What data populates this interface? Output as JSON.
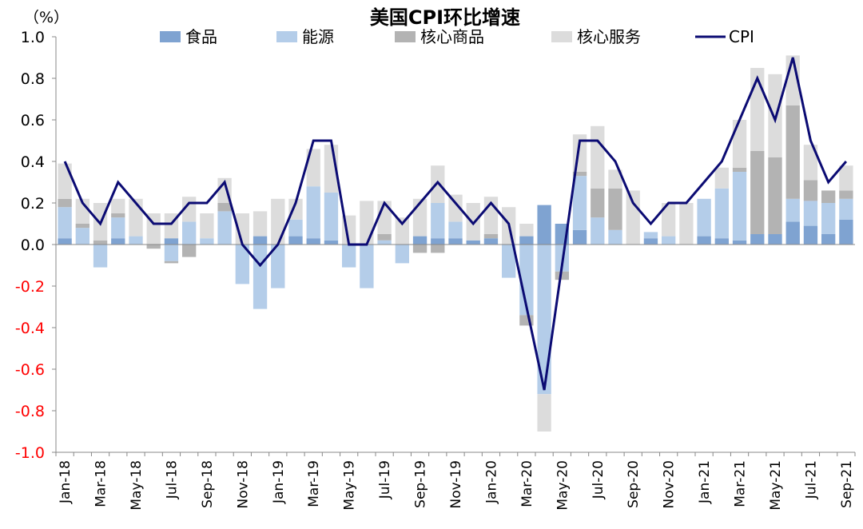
{
  "chart_data": {
    "type": "bar",
    "stacked": true,
    "title": "美国CPI环比增速",
    "unit_label": "（%）",
    "ylim": [
      -1.0,
      1.0
    ],
    "yticks": [
      "1.0",
      "0.8",
      "0.6",
      "0.4",
      "0.2",
      "0.0",
      "-0.2",
      "-0.4",
      "-0.6",
      "-0.8",
      "-1.0"
    ],
    "ytick_values": [
      1.0,
      0.8,
      0.6,
      0.4,
      0.2,
      0.0,
      -0.2,
      -0.4,
      -0.6,
      -0.8,
      -1.0
    ],
    "negative_tick_color": "#ff0000",
    "positive_tick_color": "#000000",
    "categories": [
      "Jan-18",
      "Feb-18",
      "Mar-18",
      "Apr-18",
      "May-18",
      "Jun-18",
      "Jul-18",
      "Aug-18",
      "Sep-18",
      "Oct-18",
      "Nov-18",
      "Dec-18",
      "Jan-19",
      "Feb-19",
      "Mar-19",
      "Apr-19",
      "May-19",
      "Jun-19",
      "Jul-19",
      "Aug-19",
      "Sep-19",
      "Oct-19",
      "Nov-19",
      "Dec-19",
      "Jan-20",
      "Feb-20",
      "Mar-20",
      "Apr-20",
      "May-20",
      "Jun-20",
      "Jul-20",
      "Aug-20",
      "Sep-20",
      "Oct-20",
      "Nov-20",
      "Dec-20",
      "Jan-21",
      "Feb-21",
      "Mar-21",
      "Apr-21",
      "May-21",
      "Jun-21",
      "Jul-21",
      "Aug-21",
      "Sep-21"
    ],
    "x_tick_labels": [
      "Jan-18",
      "Mar-18",
      "May-18",
      "Jul-18",
      "Sep-18",
      "Nov-18",
      "Jan-19",
      "Mar-19",
      "May-19",
      "Jul-19",
      "Sep-19",
      "Nov-19",
      "Jan-20",
      "Mar-20",
      "May-20",
      "Jul-20",
      "Sep-20",
      "Nov-20",
      "Jan-21",
      "Mar-21",
      "May-21",
      "Jul-21",
      "Sep-21"
    ],
    "series": [
      {
        "name": "食品",
        "kind": "bar",
        "color": "#7fa3d1",
        "values": [
          0.03,
          0.0,
          0.0,
          0.03,
          0.0,
          0.0,
          0.03,
          0.0,
          0.0,
          0.0,
          0.0,
          0.04,
          0.0,
          0.04,
          0.03,
          0.02,
          0.0,
          0.0,
          0.0,
          0.0,
          0.04,
          0.03,
          0.03,
          0.02,
          0.03,
          0.0,
          0.04,
          0.19,
          0.1,
          0.07,
          0.0,
          0.0,
          0.0,
          0.03,
          0.0,
          0.0,
          0.04,
          0.03,
          0.02,
          0.05,
          0.05,
          0.11,
          0.09,
          0.05,
          0.12
        ]
      },
      {
        "name": "能源",
        "kind": "bar",
        "color": "#b4cde9",
        "values": [
          0.15,
          0.08,
          -0.11,
          0.1,
          0.04,
          0.0,
          -0.08,
          0.11,
          0.03,
          0.16,
          -0.19,
          -0.31,
          -0.21,
          0.08,
          0.25,
          0.23,
          -0.11,
          -0.21,
          0.02,
          -0.09,
          0.0,
          0.17,
          0.08,
          0.0,
          0.0,
          -0.16,
          -0.34,
          -0.72,
          -0.13,
          0.26,
          0.13,
          0.07,
          0.0,
          0.03,
          0.04,
          0.0,
          0.18,
          0.24,
          0.33,
          0.0,
          0.0,
          0.11,
          0.12,
          0.15,
          0.1
        ]
      },
      {
        "name": "核心商品",
        "kind": "bar",
        "color": "#b3b3b3",
        "values": [
          0.04,
          0.02,
          0.02,
          0.02,
          0.0,
          -0.02,
          -0.01,
          -0.06,
          0.0,
          0.04,
          0.0,
          0.0,
          0.0,
          0.0,
          0.0,
          0.0,
          0.0,
          0.0,
          0.03,
          0.0,
          -0.04,
          -0.04,
          0.0,
          0.0,
          0.02,
          0.0,
          -0.05,
          0.0,
          -0.04,
          0.02,
          0.14,
          0.2,
          0.0,
          0.0,
          0.0,
          0.0,
          0.0,
          0.0,
          0.02,
          0.4,
          0.37,
          0.45,
          0.1,
          0.06,
          0.04
        ]
      },
      {
        "name": "核心服务",
        "kind": "bar",
        "color": "#dcdcdc",
        "values": [
          0.17,
          0.12,
          0.18,
          0.07,
          0.18,
          0.15,
          0.12,
          0.12,
          0.12,
          0.12,
          0.15,
          0.12,
          0.22,
          0.1,
          0.18,
          0.23,
          0.14,
          0.21,
          0.16,
          0.13,
          0.18,
          0.18,
          0.13,
          0.18,
          0.18,
          0.18,
          0.06,
          -0.18,
          0.0,
          0.18,
          0.3,
          0.09,
          0.26,
          0.0,
          0.16,
          0.2,
          0.0,
          0.1,
          0.23,
          0.4,
          0.4,
          0.24,
          0.17,
          0.0,
          0.12
        ]
      },
      {
        "name": "CPI",
        "kind": "line",
        "color": "#0b0b73",
        "values": [
          0.4,
          0.2,
          0.1,
          0.3,
          0.2,
          0.1,
          0.1,
          0.2,
          0.2,
          0.3,
          0.0,
          -0.1,
          0.0,
          0.2,
          0.5,
          0.5,
          0.0,
          0.0,
          0.2,
          0.1,
          0.2,
          0.3,
          0.2,
          0.1,
          0.2,
          0.1,
          -0.3,
          -0.7,
          -0.1,
          0.5,
          0.5,
          0.4,
          0.2,
          0.1,
          0.2,
          0.2,
          0.3,
          0.4,
          0.6,
          0.8,
          0.6,
          0.9,
          0.5,
          0.3,
          0.4
        ]
      }
    ],
    "legend": [
      "食品",
      "能源",
      "核心商品",
      "核心服务",
      "CPI"
    ],
    "legend_position": "top",
    "grid": false
  }
}
